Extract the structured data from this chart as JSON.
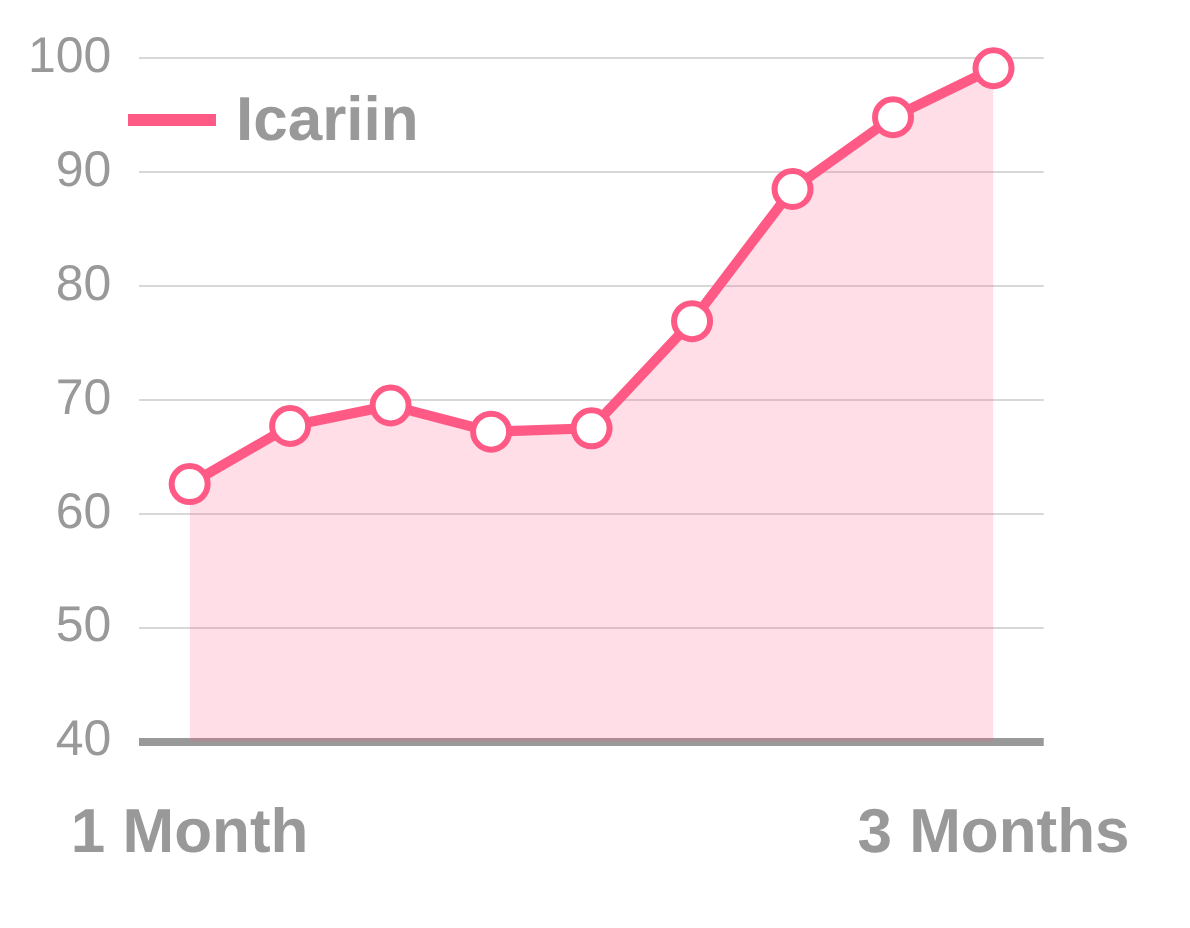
{
  "chart_data": {
    "type": "area",
    "categories": [
      "1 Month",
      null,
      null,
      null,
      null,
      null,
      null,
      null,
      "3 Months"
    ],
    "series": [
      {
        "name": "Icariin",
        "color": "#ff5a85",
        "values": [
          62.6,
          67.7,
          69.5,
          67.2,
          67.5,
          76.9,
          88.5,
          94.8,
          99.1
        ]
      }
    ],
    "ylim": [
      40,
      100
    ],
    "yticks": [
      40,
      50,
      60,
      70,
      80,
      90,
      100
    ],
    "grid": "y",
    "legend": "top left",
    "marker": "circle",
    "line_style": "solid"
  }
}
